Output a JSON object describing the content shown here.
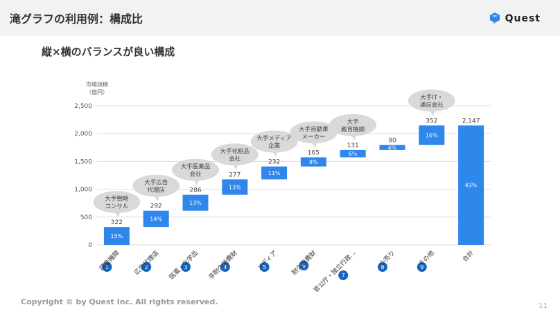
{
  "header": {
    "title": "滝グラフの利用例：構成比",
    "logo_text": "Quest"
  },
  "subtitle": "縦×横のバランスが良い構成",
  "footer": {
    "copyright": "Copyright © by Quest Inc. All rights reserved.",
    "page": "11"
  },
  "colors": {
    "bar": "#2f86eb",
    "bubble": "#d9d9d9",
    "badge": "#1565c0",
    "grid": "#dddddd"
  },
  "chart_data": {
    "type": "bar",
    "subtype": "waterfall",
    "ylabel_lines": [
      "市場規模",
      "（億円）"
    ],
    "ylim": [
      0,
      2500
    ],
    "yticks": [
      0,
      500,
      1000,
      1500,
      2000,
      2500
    ],
    "ytick_labels": [
      "0",
      "500",
      "1,000",
      "1,500",
      "2,000",
      "2,500"
    ],
    "categories": [
      "調査機関",
      "広告代理店",
      "医薬・化学品",
      "非耐久消費財",
      "メディア",
      "耐久消費財",
      "官公庁・独立行政...",
      "小売り",
      "その他",
      "合計"
    ],
    "values": [
      322,
      292,
      286,
      277,
      232,
      165,
      131,
      90,
      352,
      2147
    ],
    "value_labels": [
      "322",
      "292",
      "286",
      "277",
      "232",
      "165",
      "131",
      "90",
      "352",
      "2,147"
    ],
    "percent_labels": [
      "15%",
      "14%",
      "13%",
      "13%",
      "11%",
      "8%",
      "6%",
      "4%",
      "16%",
      "43%"
    ],
    "badges": [
      "1",
      "2",
      "3",
      "4",
      "5",
      "6",
      "7",
      "8",
      "9"
    ],
    "callouts": [
      {
        "index": 0,
        "lines": [
          "大手戦略",
          "コンサル"
        ]
      },
      {
        "index": 1,
        "lines": [
          "大手広告",
          "代理店"
        ]
      },
      {
        "index": 2,
        "lines": [
          "大手医薬品",
          "会社"
        ]
      },
      {
        "index": 3,
        "lines": [
          "大手化粧品",
          "会社"
        ]
      },
      {
        "index": 4,
        "lines": [
          "大手メディア",
          "企業"
        ]
      },
      {
        "index": 5,
        "lines": [
          "大手自動車",
          "メーカー"
        ]
      },
      {
        "index": 6,
        "lines": [
          "大手",
          "教育機関"
        ]
      },
      {
        "index": 8,
        "lines": [
          "大手IT・",
          "通信会社"
        ]
      }
    ]
  }
}
